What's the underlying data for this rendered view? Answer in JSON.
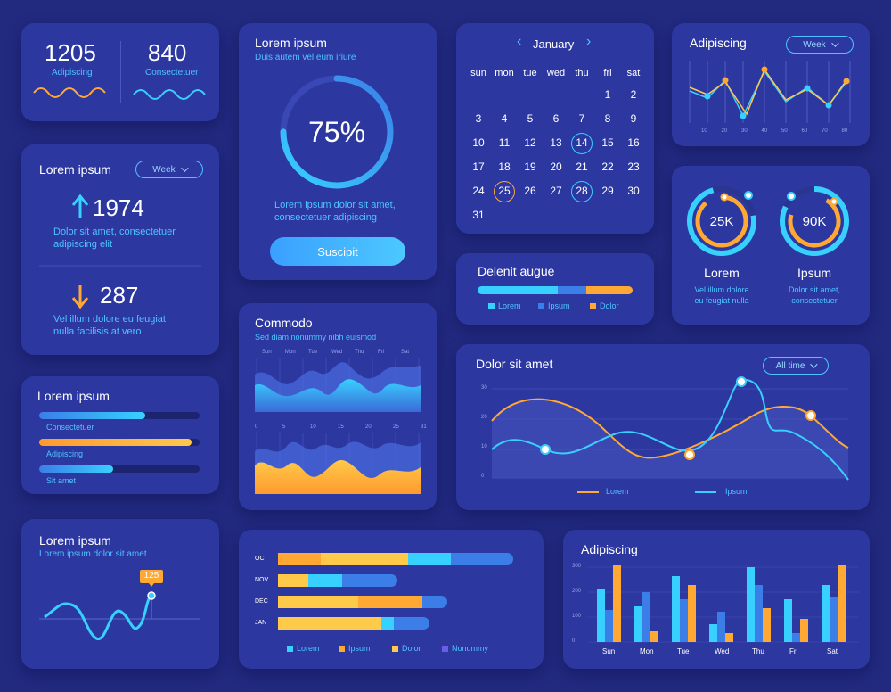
{
  "colors": {
    "bg": "#222a80",
    "card": "#2c38a0",
    "cyan": "#38d0ff",
    "blue": "#3b7ee8",
    "orange": "#ffa833",
    "yellow": "#ffc94a"
  },
  "stats": {
    "a": {
      "value": "1205",
      "label": "Adipiscing"
    },
    "b": {
      "value": "840",
      "label": "Consectetuer"
    }
  },
  "weekly": {
    "title": "Lorem ipsum",
    "select": "Week",
    "up": {
      "value": "1974",
      "text1": "Dolor sit amet, consectetuer",
      "text2": "adipiscing elit"
    },
    "down": {
      "value": "287",
      "text1": "Vel illum dolore eu feugiat",
      "text2": "nulla facilisis at vero"
    }
  },
  "progress_bars": {
    "title": "Lorem ipsum",
    "items": [
      {
        "label": "Consectetuer",
        "value": 0.66
      },
      {
        "label": "Adipiscing",
        "value": 0.95
      },
      {
        "label": "Sit amet",
        "value": 0.46
      }
    ]
  },
  "mini_line": {
    "title": "Lorem ipsum",
    "subtitle": "Lorem ipsum dolor sit amet",
    "badge": "125"
  },
  "ring": {
    "title": "Lorem ipsum",
    "subtitle": "Duis autem vel eum iriure",
    "value": "75%",
    "fraction": 0.75,
    "text1": "Lorem ipsum dolor sit amet,",
    "text2": "consectetuer adipiscing",
    "button": "Suscipit"
  },
  "commodo": {
    "title": "Commodo",
    "subtitle": "Sed diam nonummy nibh euismod",
    "days": [
      "Sun",
      "Mon",
      "Tue",
      "Wed",
      "Thu",
      "Fri",
      "Sat"
    ],
    "ticks": [
      "0",
      "5",
      "10",
      "15",
      "20",
      "25",
      "31"
    ]
  },
  "calendar": {
    "month": "January",
    "weekdays": [
      "sun",
      "mon",
      "tue",
      "wed",
      "thu",
      "fri",
      "sat"
    ],
    "days": [
      "1",
      "2",
      "3",
      "4",
      "5",
      "6",
      "7",
      "8",
      "9",
      "10",
      "11",
      "12",
      "13",
      "14",
      "15",
      "16",
      "17",
      "18",
      "19",
      "20",
      "21",
      "22",
      "23",
      "24",
      "25",
      "26",
      "27",
      "28",
      "29",
      "30",
      "31"
    ],
    "highlight_cyan": [
      "14",
      "28"
    ],
    "highlight_orange": [
      "25"
    ]
  },
  "delenit": {
    "title": "Delenit augue",
    "segments": [
      {
        "label": "Lorem",
        "value": 0.52
      },
      {
        "label": "Ipsum",
        "value": 0.18
      },
      {
        "label": "Dolor",
        "value": 0.3
      }
    ]
  },
  "hbars": {
    "months": [
      "OCT",
      "NOV",
      "DEC",
      "JAN"
    ],
    "legend": [
      "Lorem",
      "Ipsum",
      "Dolor",
      "Nonummy"
    ]
  },
  "adipiscing_line": {
    "title": "Adipiscing",
    "select": "Week",
    "ticks": [
      "10",
      "20",
      "30",
      "40",
      "50",
      "60",
      "70",
      "80"
    ]
  },
  "donuts": [
    {
      "value": "25K",
      "label": "Lorem",
      "text1": "Vel illum dolore",
      "text2": "eu feugiat nulla"
    },
    {
      "value": "90K",
      "label": "Ipsum",
      "text1": "Dolor sit amet,",
      "text2": "consectetuer"
    }
  ],
  "dolor_chart": {
    "title": "Dolor sit amet",
    "select": "All time",
    "yticks": [
      "30",
      "20",
      "10",
      "0"
    ],
    "legend": [
      "Lorem",
      "Ipsum"
    ]
  },
  "bar_chart": {
    "title": "Adipiscing",
    "yticks": [
      "300",
      "200",
      "100",
      "0"
    ],
    "days": [
      "Sun",
      "Mon",
      "Tue",
      "Wed",
      "Thu",
      "Fri",
      "Sat"
    ]
  }
}
